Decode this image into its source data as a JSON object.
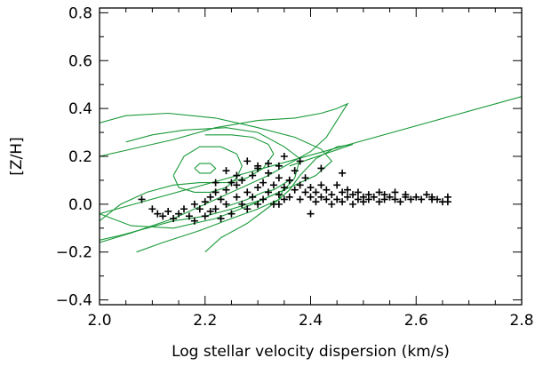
{
  "chart_data": {
    "type": "scatter",
    "title": "",
    "xlabel": "Log stellar velocity dispersion (km/s)",
    "ylabel": "[Z/H]",
    "xlim": [
      2.0,
      2.8
    ],
    "ylim": [
      -0.42,
      0.82
    ],
    "xticks": [
      2.0,
      2.2,
      2.4,
      2.6,
      2.8
    ],
    "xtick_labels": [
      "2.0",
      "2.2",
      "2.4",
      "2.6",
      "2.8"
    ],
    "yticks": [
      -0.4,
      -0.2,
      0.0,
      0.2,
      0.4,
      0.6,
      0.8
    ],
    "ytick_labels": [
      "−0.4",
      "−0.2",
      "0.0",
      "0.2",
      "0.4",
      "0.6",
      "0.8"
    ],
    "grid": false,
    "legend": "none",
    "colors": {
      "contour": "#1a9a3a",
      "points": "#000000",
      "frame": "#000000"
    },
    "series": [
      {
        "kind": "scatter",
        "marker": "plus",
        "x": [
          2.08,
          2.1,
          2.11,
          2.12,
          2.13,
          2.14,
          2.15,
          2.16,
          2.17,
          2.18,
          2.18,
          2.19,
          2.2,
          2.2,
          2.21,
          2.21,
          2.22,
          2.22,
          2.23,
          2.23,
          2.24,
          2.24,
          2.25,
          2.25,
          2.26,
          2.26,
          2.27,
          2.27,
          2.28,
          2.28,
          2.29,
          2.29,
          2.3,
          2.3,
          2.3,
          2.31,
          2.31,
          2.32,
          2.32,
          2.33,
          2.33,
          2.34,
          2.34,
          2.34,
          2.35,
          2.35,
          2.36,
          2.36,
          2.37,
          2.37,
          2.38,
          2.38,
          2.39,
          2.39,
          2.4,
          2.4,
          2.41,
          2.41,
          2.42,
          2.42,
          2.43,
          2.43,
          2.44,
          2.44,
          2.45,
          2.45,
          2.46,
          2.46,
          2.47,
          2.47,
          2.48,
          2.48,
          2.49,
          2.49,
          2.5,
          2.5,
          2.51,
          2.51,
          2.52,
          2.53,
          2.53,
          2.54,
          2.54,
          2.55,
          2.56,
          2.56,
          2.57,
          2.58,
          2.58,
          2.59,
          2.6,
          2.61,
          2.62,
          2.63,
          2.64,
          2.65,
          2.66,
          2.66,
          2.63,
          2.46,
          2.32,
          2.35,
          2.28,
          2.24,
          2.38,
          2.3,
          2.26,
          2.42,
          2.36,
          2.22,
          2.34,
          2.4
        ],
        "y": [
          0.02,
          -0.02,
          -0.04,
          -0.05,
          -0.03,
          -0.06,
          -0.04,
          -0.02,
          -0.05,
          0.0,
          -0.07,
          -0.02,
          0.01,
          -0.05,
          0.03,
          -0.03,
          0.05,
          -0.02,
          0.02,
          -0.06,
          0.06,
          0.0,
          0.09,
          -0.04,
          0.03,
          0.08,
          0.0,
          0.1,
          0.05,
          -0.02,
          0.12,
          0.03,
          0.07,
          0.0,
          0.15,
          0.02,
          0.09,
          0.05,
          0.13,
          0.0,
          0.08,
          0.04,
          0.11,
          0.16,
          0.02,
          0.07,
          0.1,
          0.03,
          0.06,
          0.14,
          0.02,
          0.08,
          0.05,
          0.11,
          0.03,
          0.07,
          0.01,
          0.05,
          0.08,
          0.03,
          0.02,
          0.06,
          0.04,
          0.0,
          0.08,
          0.02,
          0.05,
          0.01,
          0.03,
          0.06,
          0.04,
          0.0,
          0.02,
          0.05,
          0.03,
          0.01,
          0.04,
          0.02,
          0.03,
          0.01,
          0.05,
          0.02,
          0.04,
          0.03,
          0.02,
          0.05,
          0.01,
          0.03,
          0.04,
          0.02,
          0.03,
          0.02,
          0.04,
          0.03,
          0.02,
          0.01,
          0.03,
          0.01,
          0.02,
          0.13,
          0.17,
          0.2,
          0.18,
          0.14,
          0.18,
          0.16,
          0.12,
          0.15,
          0.1,
          0.09,
          0.0,
          -0.04
        ]
      },
      {
        "kind": "line",
        "x": [
          2.0,
          2.8
        ],
        "y": [
          -0.04,
          0.45
        ]
      },
      {
        "kind": "contour",
        "paths": [
          {
            "x": [
              2.18,
              2.19,
              2.21,
              2.22,
              2.21,
              2.19,
              2.18
            ],
            "y": [
              0.15,
              0.13,
              0.13,
              0.15,
              0.17,
              0.17,
              0.15
            ]
          },
          {
            "x": [
              2.14,
              2.15,
              2.18,
              2.21,
              2.24,
              2.26,
              2.27,
              2.26,
              2.23,
              2.19,
              2.16,
              2.14
            ],
            "y": [
              0.12,
              0.07,
              0.05,
              0.05,
              0.07,
              0.11,
              0.16,
              0.21,
              0.24,
              0.24,
              0.2,
              0.12
            ]
          },
          {
            "x": [
              2.0,
              2.04,
              2.09,
              2.14,
              2.19,
              2.24,
              2.28,
              2.31,
              2.33,
              2.32,
              2.29,
              2.25,
              2.2
            ],
            "y": [
              -0.07,
              0.0,
              0.05,
              0.08,
              0.09,
              0.09,
              0.11,
              0.15,
              0.21,
              0.25,
              0.28,
              0.29,
              0.29
            ]
          },
          {
            "x": [
              2.0,
              2.04,
              2.09,
              2.14,
              2.2,
              2.25,
              2.31,
              2.35,
              2.37,
              2.38,
              2.35,
              2.3,
              2.24,
              2.16,
              2.1,
              2.05
            ],
            "y": [
              -0.15,
              -0.13,
              -0.1,
              -0.07,
              -0.05,
              -0.02,
              0.02,
              0.06,
              0.11,
              0.19,
              0.24,
              0.3,
              0.32,
              0.31,
              0.29,
              0.26
            ]
          },
          {
            "x": [
              2.0,
              2.06,
              2.14,
              2.22,
              2.29,
              2.36,
              2.41,
              2.44,
              2.42,
              2.37,
              2.3,
              2.22,
              2.13,
              2.05,
              2.0
            ],
            "y": [
              -0.04,
              -0.09,
              -0.1,
              -0.06,
              0.0,
              0.07,
              0.12,
              0.18,
              0.23,
              0.28,
              0.32,
              0.36,
              0.38,
              0.37,
              0.34
            ]
          },
          {
            "x": [
              2.0,
              2.06,
              2.14,
              2.22,
              2.3,
              2.37,
              2.42,
              2.45,
              2.47,
              2.45,
              2.43,
              2.4,
              2.32,
              2.22,
              2.14,
              2.06,
              2.0
            ],
            "y": [
              0.2,
              0.23,
              0.27,
              0.32,
              0.35,
              0.36,
              0.38,
              0.4,
              0.42,
              0.35,
              0.28,
              0.22,
              0.12,
              0.02,
              -0.06,
              -0.12,
              -0.16
            ]
          },
          {
            "x": [
              2.07,
              2.12,
              2.19,
              2.25,
              2.3,
              2.34,
              2.36,
              2.38,
              2.41,
              2.45,
              2.48,
              2.44,
              2.4,
              2.36
            ],
            "y": [
              -0.2,
              -0.16,
              -0.11,
              -0.06,
              -0.02,
              0.02,
              0.06,
              0.12,
              0.19,
              0.24,
              0.25,
              0.22,
              0.19,
              0.16
            ]
          },
          {
            "x": [
              2.2,
              2.23,
              2.28,
              2.31,
              2.34,
              2.35
            ],
            "y": [
              -0.2,
              -0.14,
              -0.08,
              -0.03,
              0.02,
              0.07
            ]
          },
          {
            "x": [
              2.24,
              2.28,
              2.31,
              2.33,
              2.36
            ],
            "y": [
              -0.01,
              0.02,
              0.05,
              0.06,
              0.1
            ]
          }
        ]
      }
    ]
  }
}
